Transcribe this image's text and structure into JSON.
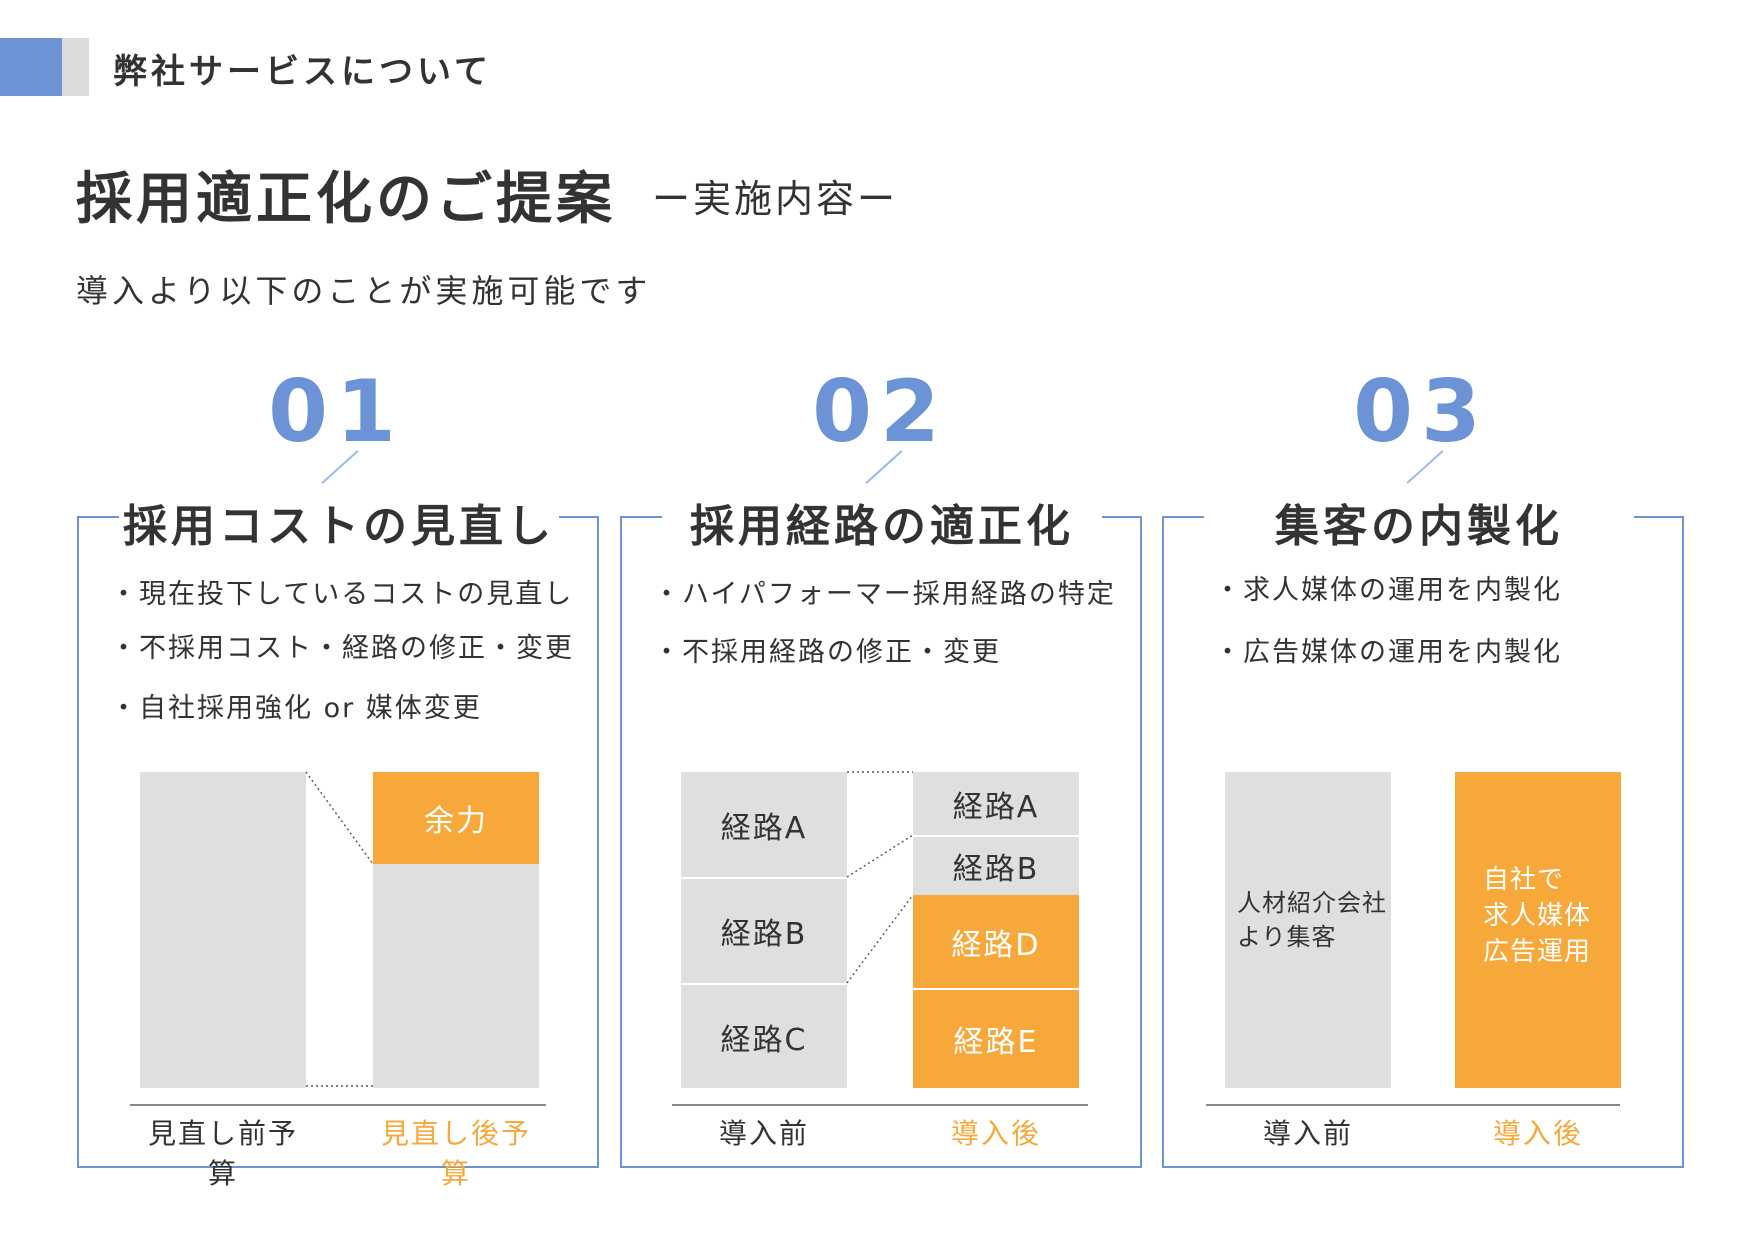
{
  "header": {
    "section_label": "弊社サービスについて"
  },
  "title": {
    "main": "採用適正化のご提案",
    "sub": "ー実施内容ー"
  },
  "lead": "導入より以下のことが実施可能です",
  "colors": {
    "accent_blue": "#6b93d6",
    "orange": "#f7a83a",
    "gray": "#dfdfdf"
  },
  "panels": [
    {
      "number": "01",
      "title": "採用コストの見直し",
      "bullets": [
        "・現在投下しているコストの見直し",
        "・不採用コスト・経路の修正・変更",
        "・自社採用強化 or 媒体変更"
      ],
      "left_block": "",
      "right_blocks": [
        "余力",
        ""
      ],
      "axis_before": "見直し前予算",
      "axis_after": "見直し後予算"
    },
    {
      "number": "02",
      "title": "採用経路の適正化",
      "bullets": [
        "・ハイパフォーマー採用経路の特定",
        "・不採用経路の修正・変更"
      ],
      "left_blocks": [
        "経路A",
        "経路B",
        "経路C"
      ],
      "right_blocks": [
        "経路A",
        "経路B",
        "経路D",
        "経路E"
      ],
      "axis_before": "導入前",
      "axis_after": "導入後"
    },
    {
      "number": "03",
      "title": "集客の内製化",
      "bullets": [
        "・求人媒体の運用を内製化",
        "・広告媒体の運用を内製化"
      ],
      "left_block": "人材紹介会社\nより集客",
      "right_block": "自社で\n求人媒体\n広告運用",
      "axis_before": "導入前",
      "axis_after": "導入後"
    }
  ]
}
